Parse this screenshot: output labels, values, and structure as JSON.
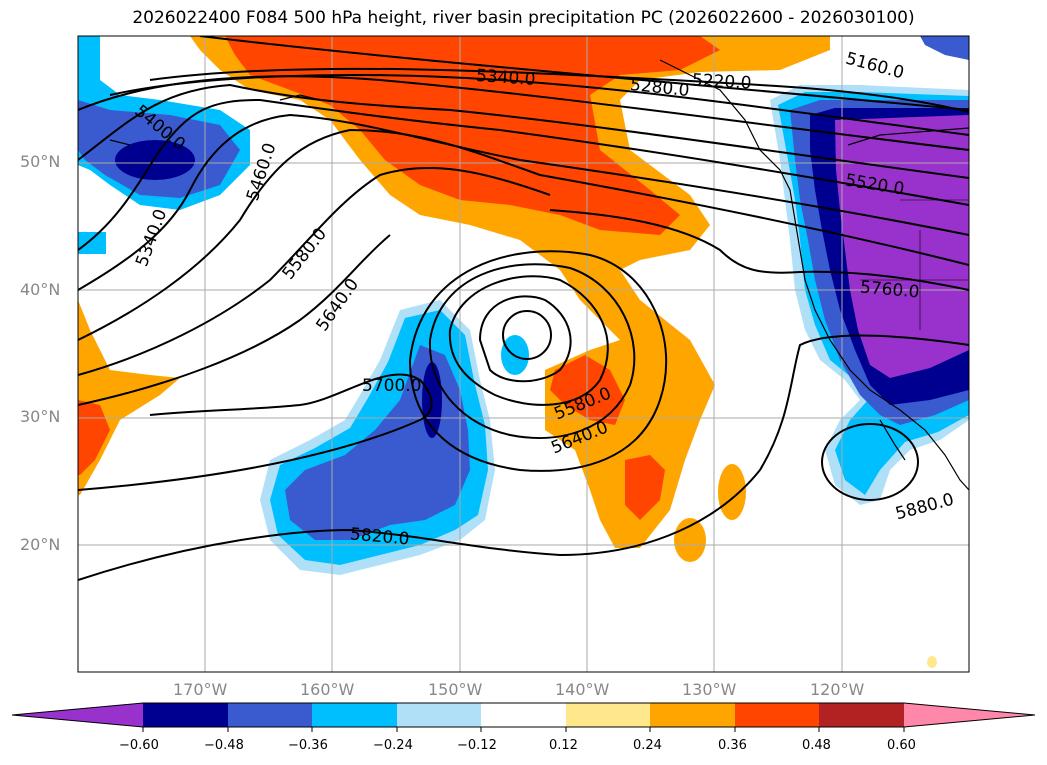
{
  "title": "2026022400 F084 500 hPa height, river basin precipitation PC (2026022600 - 2026030100)",
  "lat_labels": [
    "50°N",
    "40°N",
    "30°N",
    "20°N"
  ],
  "lon_labels": [
    "170°W",
    "160°W",
    "150°W",
    "140°W",
    "130°W",
    "120°W"
  ],
  "contour_labels": [
    "5340.0",
    "5220.0",
    "5160.0",
    "5280.0",
    "5400.0",
    "5460.0",
    "5520.0",
    "5340.0",
    "5580.0",
    "5640.0",
    "5760.0",
    "5700.0",
    "5580.0",
    "5640.0",
    "5820.0",
    "5880.0"
  ],
  "colorbar": {
    "ticks": [
      "−0.60",
      "−0.48",
      "−0.36",
      "−0.24",
      "−0.12",
      "0.12",
      "0.24",
      "0.36",
      "0.48",
      "0.60"
    ],
    "colors": [
      "#9932cc",
      "#000090",
      "#3a5bd0",
      "#00bfff",
      "#b0e0f8",
      "#ffffff",
      "#ffe88c",
      "#ffa500",
      "#ff4500",
      "#b22222",
      "#ff88aa"
    ]
  },
  "palette": {
    "neg_060": "#9932cc",
    "neg_048": "#000090",
    "neg_036": "#3a5bd0",
    "neg_024": "#00bfff",
    "neg_012": "#b0e0f8",
    "pos_012": "#ffe88c",
    "pos_024": "#ffa500",
    "pos_036": "#ff4500",
    "pos_048": "#b22222"
  }
}
